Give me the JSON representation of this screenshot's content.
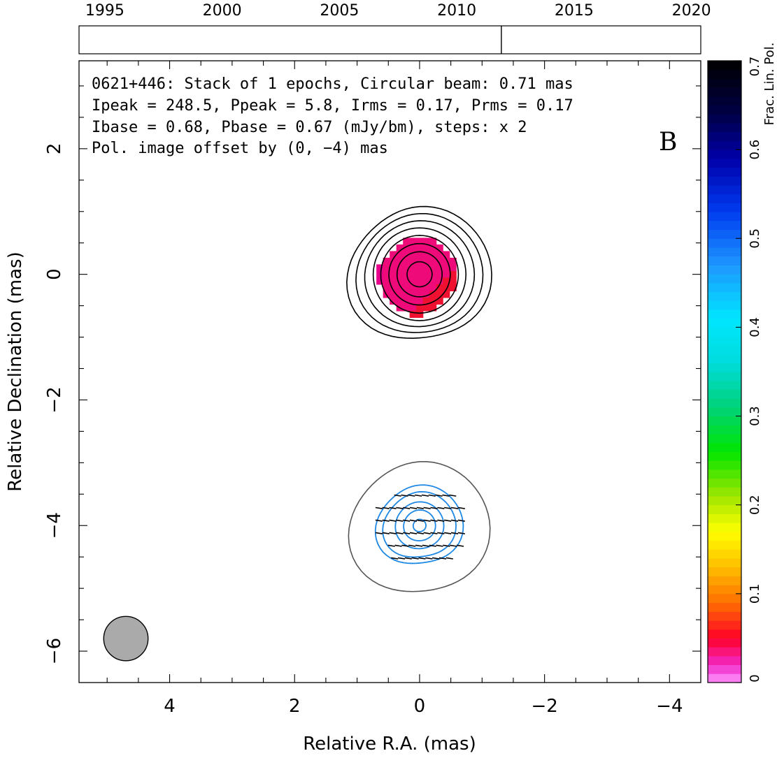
{
  "timeline": {
    "years": [
      "1995",
      "2000",
      "2005",
      "2010",
      "2015",
      "2020"
    ],
    "year_values": [
      1995,
      2000,
      2005,
      2010,
      2015,
      2020
    ],
    "range": [
      1993.9,
      2020.4
    ],
    "epochs": [
      2011.9
    ]
  },
  "annotation": {
    "line1": "0621+446: Stack of 1 epochs, Circular beam: 0.71 mas",
    "line2": "Ipeak = 248.5, Ppeak = 5.8, Irms = 0.17, Prms = 0.17",
    "line3": "Ibase = 0.68, Pbase = 0.67 (mJy/bm), steps: x 2",
    "line4": "Pol. image offset by (0, −4) mas",
    "panel_letter": "B",
    "line4_color": "#1e88e5"
  },
  "colorbar": {
    "label": "Frac. Lin. Pol.",
    "min": 0,
    "max": 0.7,
    "ticks": [
      "0",
      "0.1",
      "0.2",
      "0.3",
      "0.4",
      "0.5",
      "0.6",
      "0.7"
    ],
    "tick_values": [
      0,
      0.1,
      0.2,
      0.3,
      0.4,
      0.5,
      0.6,
      0.7
    ]
  },
  "chart_data": {
    "type": "heatmap",
    "xlabel": "Relative R.A. (mas)",
    "ylabel": "Relative Declination (mas)",
    "xlim": [
      5.45,
      -4.5
    ],
    "ylim": [
      -6.5,
      3.4
    ],
    "x_ticks": [
      "4",
      "2",
      "0",
      "−2",
      "−4"
    ],
    "x_tick_values": [
      4,
      2,
      0,
      -2,
      -4
    ],
    "y_ticks": [
      "2",
      "0",
      "−2",
      "−4",
      "−6"
    ],
    "y_tick_values": [
      2,
      0,
      -2,
      -4,
      -6
    ],
    "total_intensity_contour_radii_mas": [
      1.1,
      0.98,
      0.86,
      0.74,
      0.62,
      0.49,
      0.36,
      0.2
    ],
    "pol_offset_contour_radius_mas": 1.08,
    "pol_contour_radii_mas": [
      0.66,
      0.55,
      0.38,
      0.25,
      0.1
    ],
    "fractional_pol_center": [
      0,
      0
    ],
    "fractional_pol_value_range": [
      0.0,
      0.05
    ],
    "evpa_rows_dec": [
      -3.5,
      -3.7,
      -3.9,
      -4.1,
      -4.3,
      -4.5
    ],
    "beam_center": [
      4.7,
      -5.8
    ],
    "beam_diameter_mas": 0.71,
    "colors": {
      "intensity_contours": "#000000",
      "pol_contours": "#1e88e5",
      "pol_outer_contour": "#555555",
      "beam_fill": "#aaaaaa"
    }
  }
}
